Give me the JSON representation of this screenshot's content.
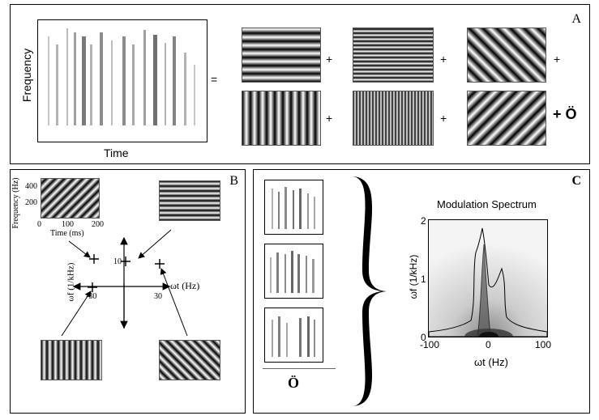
{
  "panelA": {
    "label": "A",
    "ylabel": "Frequency",
    "xlabel": "Time",
    "equals": "=",
    "plus": "+",
    "last_term": "+ Ö"
  },
  "panelB": {
    "label": "B",
    "inset_ylabel": "Frequency (Hz)",
    "inset_xlabel": "Time (ms)",
    "inset_yticks": [
      "400",
      "200"
    ],
    "inset_xticks": [
      "0",
      "100",
      "200"
    ],
    "omega_f_label": "ωf (1/kHz)",
    "omega_t_label": "ωt (Hz)",
    "tick_10": "10",
    "tick_neg30": "-30",
    "tick_30": "30"
  },
  "panelC": {
    "label": "C",
    "ellipsis": "Ö",
    "title": "Modulation Spectrum",
    "ylabel": "ωf (1/kHz)",
    "xlabel": "ωt (Hz)",
    "yticks": [
      "2",
      "1",
      "0"
    ],
    "xticks": [
      "-100",
      "0",
      "100"
    ]
  },
  "colors": {
    "line": "#000000",
    "grating_dark": "#000000",
    "grating_light": "#ffffff"
  }
}
